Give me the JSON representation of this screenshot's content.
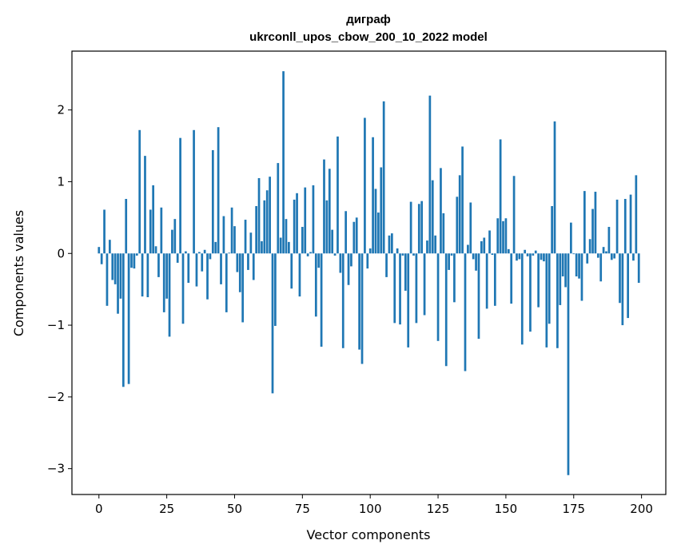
{
  "chart_data": {
    "type": "bar",
    "title": "диграф",
    "subtitle": "ukrconll_upos_cbow_200_10_2022 model",
    "xlabel": "Vector components",
    "ylabel": "Components values",
    "xlim": [
      -9.95,
      208.95
    ],
    "ylim": [
      -3.36,
      2.82
    ],
    "xticks": [
      0,
      25,
      50,
      75,
      100,
      125,
      150,
      175,
      200
    ],
    "yticks": [
      -3,
      -2,
      -1,
      0,
      1,
      2
    ],
    "xtick_labels": [
      "0",
      "25",
      "50",
      "75",
      "100",
      "125",
      "150",
      "175",
      "200"
    ],
    "ytick_labels": [
      "−3",
      "−2",
      "−1",
      "0",
      "1",
      "2"
    ],
    "grid": false,
    "bar_color": "#1f77b4",
    "x": [
      0,
      1,
      2,
      3,
      4,
      5,
      6,
      7,
      8,
      9,
      10,
      11,
      12,
      13,
      14,
      15,
      16,
      17,
      18,
      19,
      20,
      21,
      22,
      23,
      24,
      25,
      26,
      27,
      28,
      29,
      30,
      31,
      32,
      33,
      34,
      35,
      36,
      37,
      38,
      39,
      40,
      41,
      42,
      43,
      44,
      45,
      46,
      47,
      48,
      49,
      50,
      51,
      52,
      53,
      54,
      55,
      56,
      57,
      58,
      59,
      60,
      61,
      62,
      63,
      64,
      65,
      66,
      67,
      68,
      69,
      70,
      71,
      72,
      73,
      74,
      75,
      76,
      77,
      78,
      79,
      80,
      81,
      82,
      83,
      84,
      85,
      86,
      87,
      88,
      89,
      90,
      91,
      92,
      93,
      94,
      95,
      96,
      97,
      98,
      99,
      100,
      101,
      102,
      103,
      104,
      105,
      106,
      107,
      108,
      109,
      110,
      111,
      112,
      113,
      114,
      115,
      116,
      117,
      118,
      119,
      120,
      121,
      122,
      123,
      124,
      125,
      126,
      127,
      128,
      129,
      130,
      131,
      132,
      133,
      134,
      135,
      136,
      137,
      138,
      139,
      140,
      141,
      142,
      143,
      144,
      145,
      146,
      147,
      148,
      149,
      150,
      151,
      152,
      153,
      154,
      155,
      156,
      157,
      158,
      159,
      160,
      161,
      162,
      163,
      164,
      165,
      166,
      167,
      168,
      169,
      170,
      171,
      172,
      173,
      174,
      175,
      176,
      177,
      178,
      179,
      180,
      181,
      182,
      183,
      184,
      185,
      186,
      187,
      188,
      189,
      190,
      191,
      192,
      193,
      194,
      195,
      196,
      197,
      198,
      199
    ],
    "values": [
      0.09,
      -0.15,
      0.61,
      -0.73,
      0.19,
      -0.37,
      -0.43,
      -0.84,
      -0.63,
      -1.86,
      0.76,
      -1.82,
      -0.2,
      -0.21,
      -0.03,
      1.72,
      -0.6,
      1.36,
      -0.61,
      0.61,
      0.95,
      0.1,
      -0.33,
      0.64,
      -0.82,
      -0.63,
      -1.16,
      0.33,
      0.48,
      -0.13,
      1.61,
      -0.98,
      0.03,
      -0.41,
      0.0,
      1.72,
      -0.46,
      0.02,
      -0.25,
      0.05,
      -0.64,
      -0.08,
      1.44,
      0.16,
      1.76,
      -0.43,
      0.52,
      -0.82,
      0.01,
      0.64,
      0.38,
      -0.26,
      -0.54,
      -0.96,
      0.47,
      -0.23,
      0.29,
      -0.37,
      0.66,
      1.05,
      0.17,
      0.74,
      0.88,
      1.07,
      -1.95,
      -1.01,
      1.26,
      0.22,
      2.54,
      0.48,
      0.16,
      -0.49,
      0.75,
      0.84,
      -0.6,
      0.37,
      0.92,
      -0.04,
      0.02,
      0.95,
      -0.88,
      -0.2,
      -1.3,
      1.31,
      0.74,
      1.18,
      0.33,
      -0.03,
      1.63,
      -0.27,
      -1.32,
      0.59,
      -0.44,
      -0.18,
      0.44,
      0.5,
      -1.34,
      -1.54,
      1.89,
      -0.21,
      0.07,
      1.62,
      0.9,
      0.57,
      1.2,
      2.12,
      -0.33,
      0.25,
      0.28,
      -0.97,
      0.07,
      -0.99,
      -0.03,
      -0.52,
      -1.31,
      0.72,
      -0.03,
      -0.97,
      0.69,
      0.73,
      -0.86,
      0.18,
      2.2,
      1.02,
      0.25,
      -1.22,
      1.19,
      0.56,
      -1.57,
      -0.23,
      -0.03,
      -0.68,
      0.79,
      1.09,
      1.49,
      -1.64,
      0.12,
      0.71,
      -0.08,
      -0.24,
      -1.19,
      0.17,
      0.22,
      -0.77,
      0.32,
      -0.02,
      -0.73,
      0.49,
      1.59,
      0.45,
      0.49,
      0.06,
      -0.7,
      1.08,
      -0.1,
      -0.08,
      -1.27,
      0.05,
      -0.04,
      -1.09,
      -0.03,
      0.04,
      -0.75,
      -0.09,
      -0.11,
      -1.31,
      -0.98,
      0.66,
      1.84,
      -1.32,
      -0.72,
      -0.32,
      -0.47,
      -3.09,
      0.43,
      -0.01,
      -0.32,
      -0.35,
      -0.66,
      0.87,
      -0.14,
      0.2,
      0.62,
      0.86,
      -0.06,
      -0.39,
      0.09,
      0.03,
      0.37,
      -0.09,
      -0.07,
      0.75,
      -0.69,
      -1.0,
      0.76,
      -0.9,
      0.82,
      -0.1,
      1.09,
      -0.41
    ]
  }
}
